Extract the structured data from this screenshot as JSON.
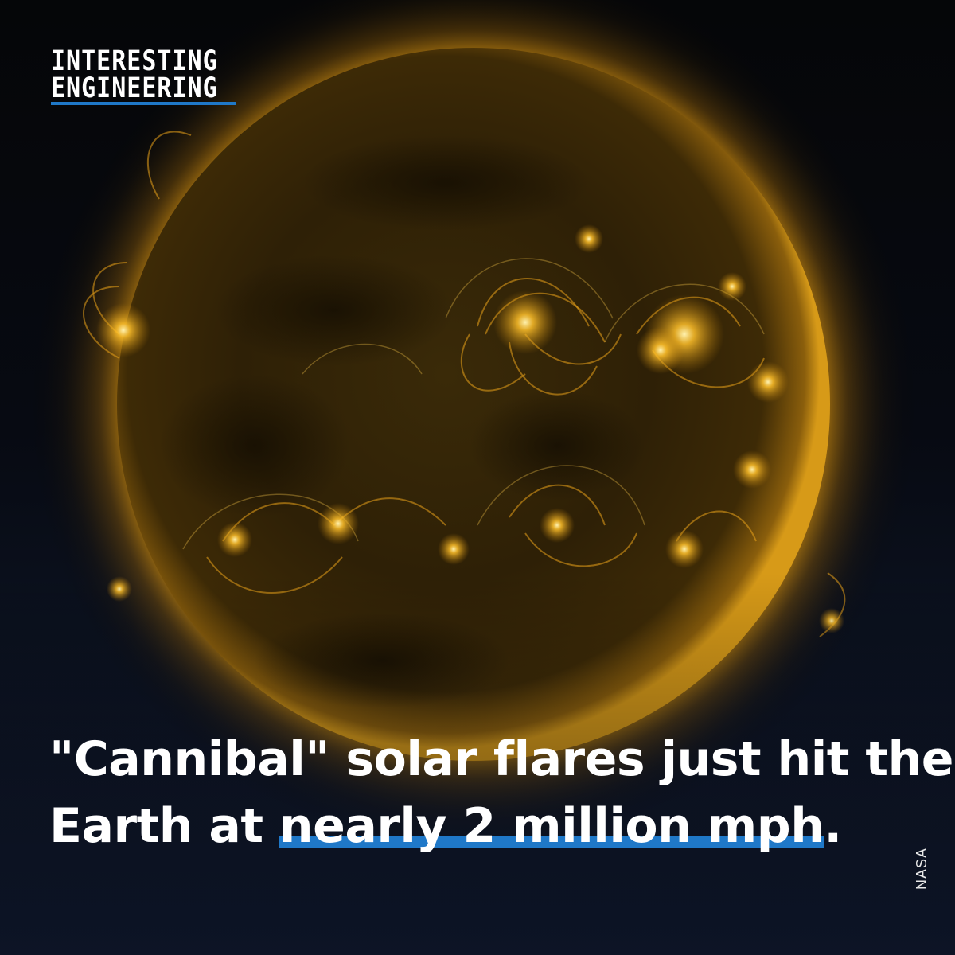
{
  "logo": {
    "line1": "INTERESTING",
    "line2": "ENGINEERING"
  },
  "headline": {
    "line1": "\"Cannibal\" solar flares just hit the",
    "line2_prefix": "Earth at ",
    "line2_highlight": "nearly 2 million mph",
    "line2_suffix": "."
  },
  "credit": "NASA",
  "colors": {
    "accent": "#1f78c8",
    "sun_core": "#2a1c05",
    "sun_glow": "#e0a016",
    "text": "#ffffff"
  }
}
